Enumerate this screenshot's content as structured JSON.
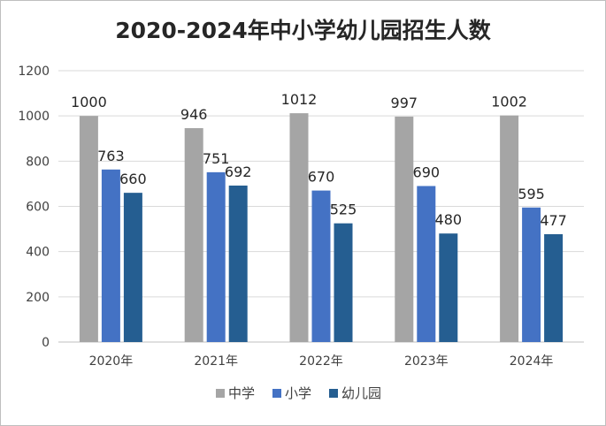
{
  "chart_data": {
    "type": "bar",
    "title": "2020-2024年中小学幼儿园招生人数",
    "categories": [
      "2020年",
      "2021年",
      "2022年",
      "2023年",
      "2024年"
    ],
    "series": [
      {
        "name": "中学",
        "color": "#a5a5a5",
        "values": [
          1000,
          946,
          1012,
          997,
          1002
        ]
      },
      {
        "name": "小学",
        "color": "#4472c4",
        "values": [
          763,
          751,
          670,
          690,
          595
        ]
      },
      {
        "name": "幼儿园",
        "color": "#255e91",
        "values": [
          660,
          692,
          525,
          480,
          477
        ]
      }
    ],
    "yticks": [
      0,
      200,
      400,
      600,
      800,
      1000,
      1200
    ],
    "ylim": [
      0,
      1200
    ],
    "xlabel": "",
    "ylabel": "",
    "legend_position": "bottom",
    "grid": true
  }
}
